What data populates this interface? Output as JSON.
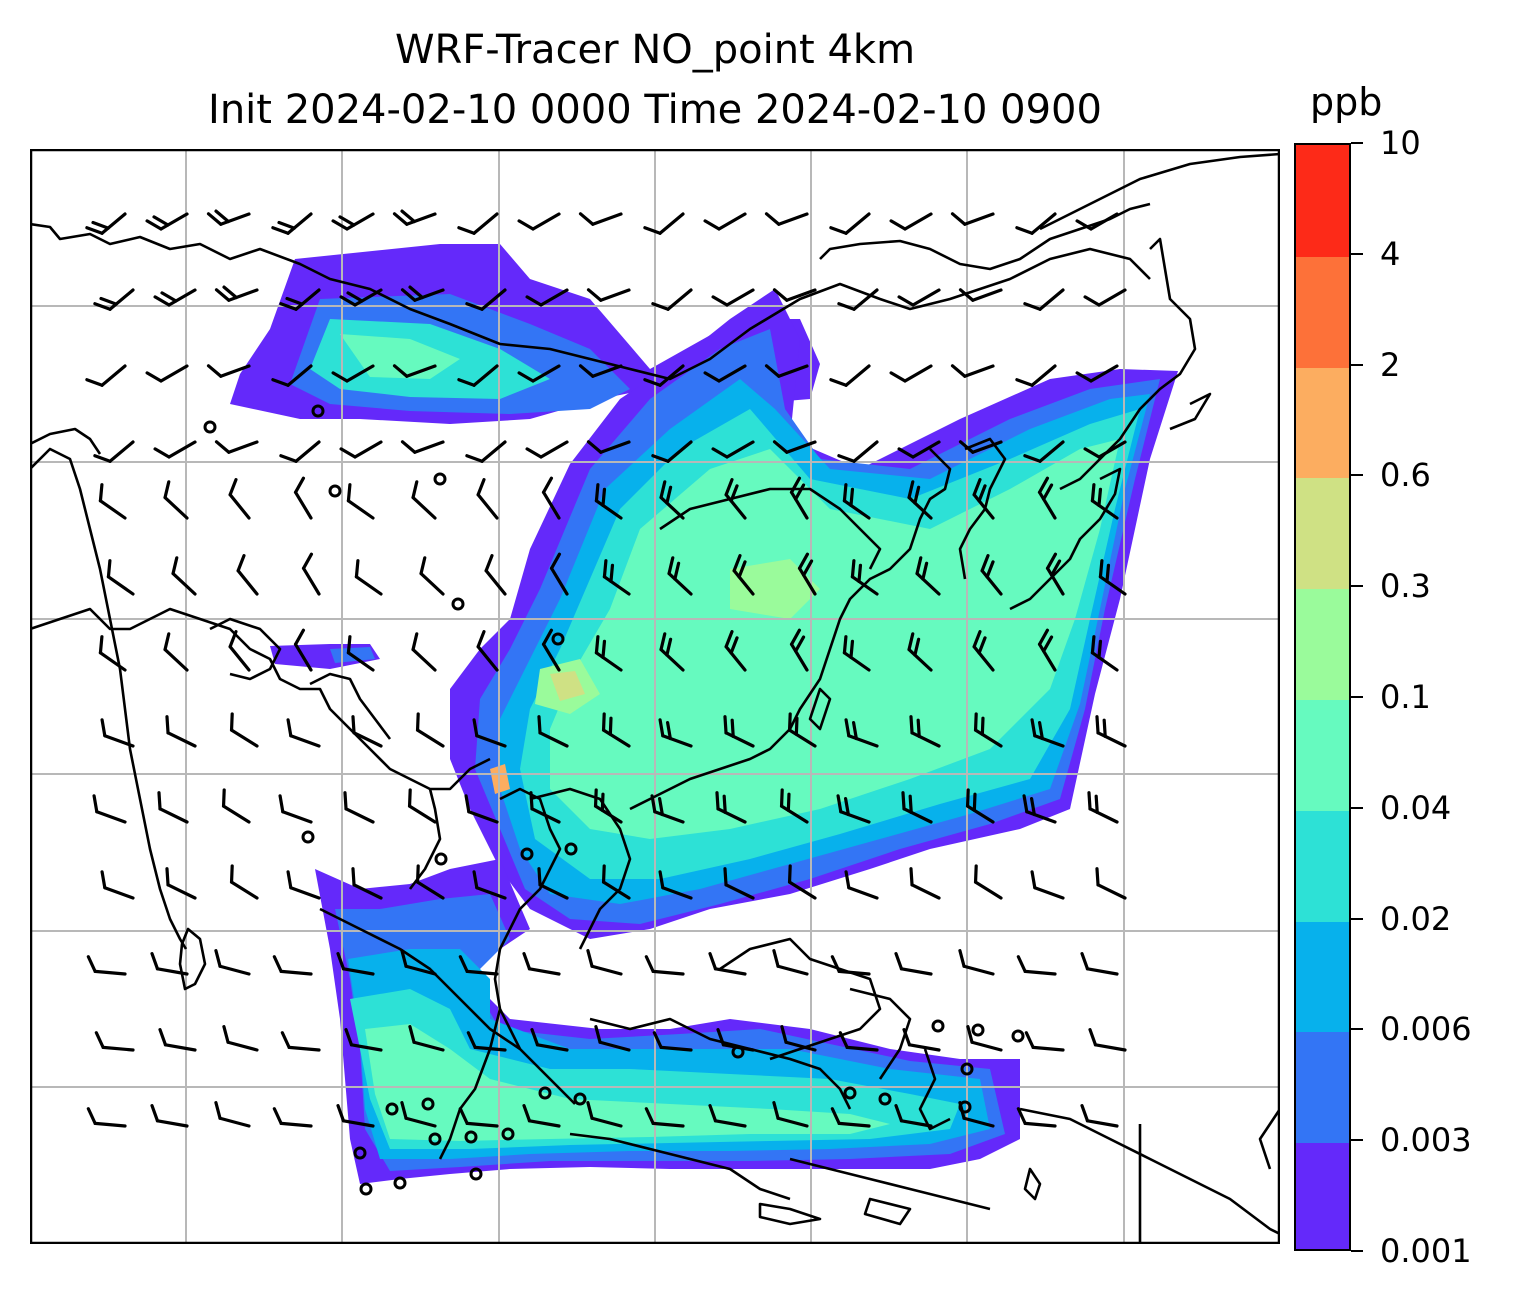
{
  "title": {
    "line1": "WRF-Tracer NO_point 4km",
    "line2": "Init 2024-02-10 0000 Time 2024-02-10 0900"
  },
  "colorbar": {
    "unit": "ppb",
    "ticks": [
      "0.001",
      "0.003",
      "0.006",
      "0.02",
      "0.04",
      "0.1",
      "0.3",
      "0.6",
      "2",
      "4",
      "10"
    ],
    "colors": [
      "#6429fa",
      "#3375f5",
      "#07b1ec",
      "#2de1d6",
      "#66fabf",
      "#9afb9b",
      "#cfe184",
      "#fcad60",
      "#fd7139",
      "#fd2a18"
    ]
  },
  "map": {
    "gridline_color": "#b8b8b8",
    "coastline_color": "#000000",
    "wind_barb_color": "#000000"
  }
}
